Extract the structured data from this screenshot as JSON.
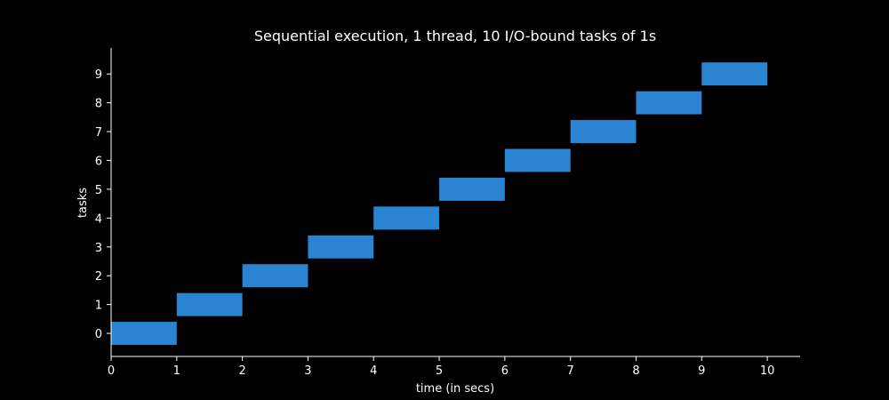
{
  "chart_data": {
    "type": "bar",
    "orientation": "horizontal",
    "title": "Sequential execution, 1 thread, 10 I/O-bound tasks of 1s",
    "xlabel": "time (in secs)",
    "ylabel": "tasks",
    "xlim": [
      0,
      10.5
    ],
    "ylim": [
      -0.8,
      9.9
    ],
    "xticks": [
      0,
      1,
      2,
      3,
      4,
      5,
      6,
      7,
      8,
      9,
      10
    ],
    "yticks": [
      0,
      1,
      2,
      3,
      4,
      5,
      6,
      7,
      8,
      9
    ],
    "bar_color": "#2a84d2",
    "grid": false,
    "series": [
      {
        "tasks": [
          {
            "task": 0,
            "start": 0,
            "duration": 1
          },
          {
            "task": 1,
            "start": 1,
            "duration": 1
          },
          {
            "task": 2,
            "start": 2,
            "duration": 1
          },
          {
            "task": 3,
            "start": 3,
            "duration": 1
          },
          {
            "task": 4,
            "start": 4,
            "duration": 1
          },
          {
            "task": 5,
            "start": 5,
            "duration": 1
          },
          {
            "task": 6,
            "start": 6,
            "duration": 1
          },
          {
            "task": 7,
            "start": 7,
            "duration": 1
          },
          {
            "task": 8,
            "start": 8,
            "duration": 1
          },
          {
            "task": 9,
            "start": 9,
            "duration": 1
          }
        ]
      }
    ]
  }
}
